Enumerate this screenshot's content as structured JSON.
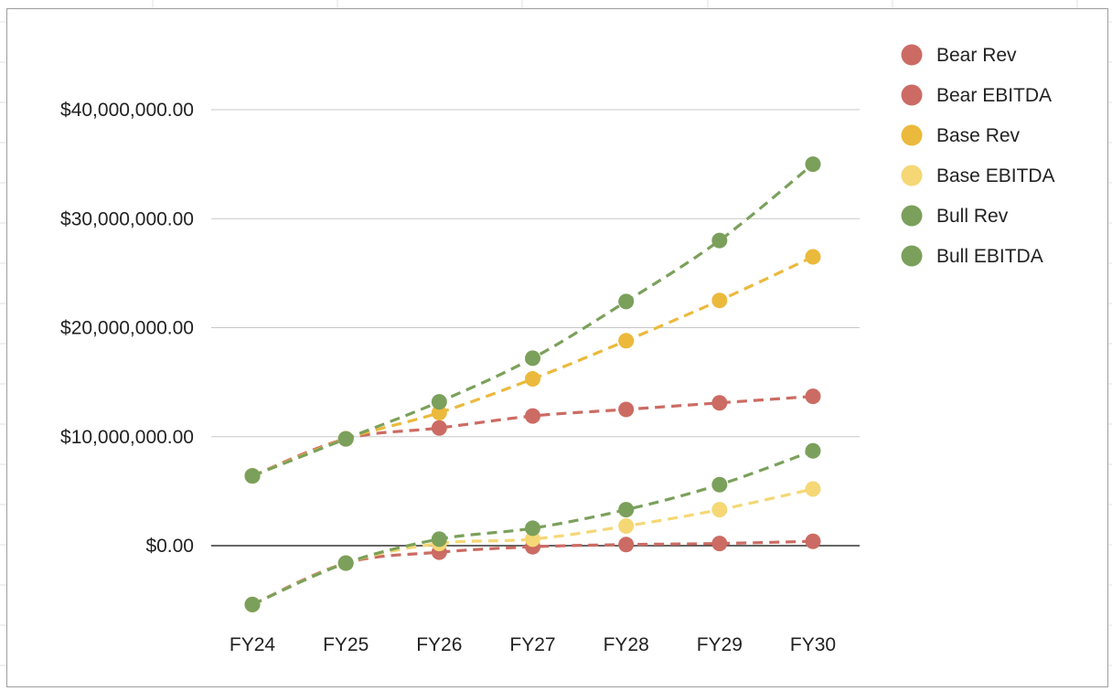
{
  "chart_data": {
    "type": "line",
    "title": "",
    "xlabel": "",
    "ylabel": "",
    "categories": [
      "FY24",
      "FY25",
      "FY26",
      "FY27",
      "FY28",
      "FY29",
      "FY30"
    ],
    "y_ticks": [
      {
        "value": 0,
        "label": "$0.00"
      },
      {
        "value": 10000000,
        "label": "$10,000,000.00"
      },
      {
        "value": 20000000,
        "label": "$20,000,000.00"
      },
      {
        "value": 30000000,
        "label": "$30,000,000.00"
      },
      {
        "value": 40000000,
        "label": "$40,000,000.00"
      }
    ],
    "ylim": [
      -7000000,
      42000000
    ],
    "grid": true,
    "line_style": "dashed",
    "legend_position": "right",
    "series": [
      {
        "name": "Bear Rev",
        "color": "#cc6b63",
        "values": [
          6400000,
          9800000,
          10800000,
          11900000,
          12500000,
          13100000,
          13700000
        ]
      },
      {
        "name": "Bear EBITDA",
        "color": "#cc6b63",
        "values": [
          -5400000,
          -1600000,
          -600000,
          -100000,
          100000,
          200000,
          400000
        ]
      },
      {
        "name": "Base Rev",
        "color": "#ebb93c",
        "values": [
          6400000,
          9800000,
          12200000,
          15300000,
          18800000,
          22500000,
          26500000
        ]
      },
      {
        "name": "Base EBITDA",
        "color": "#f5d775",
        "values": [
          -5400000,
          -1600000,
          200000,
          600000,
          1800000,
          3300000,
          5200000
        ]
      },
      {
        "name": "Bull Rev",
        "color": "#7ba05b",
        "values": [
          6400000,
          9800000,
          13200000,
          17200000,
          22400000,
          28000000,
          35000000
        ]
      },
      {
        "name": "Bull EBITDA",
        "color": "#7ba05b",
        "values": [
          -5400000,
          -1600000,
          600000,
          1600000,
          3300000,
          5600000,
          8700000
        ]
      }
    ]
  }
}
